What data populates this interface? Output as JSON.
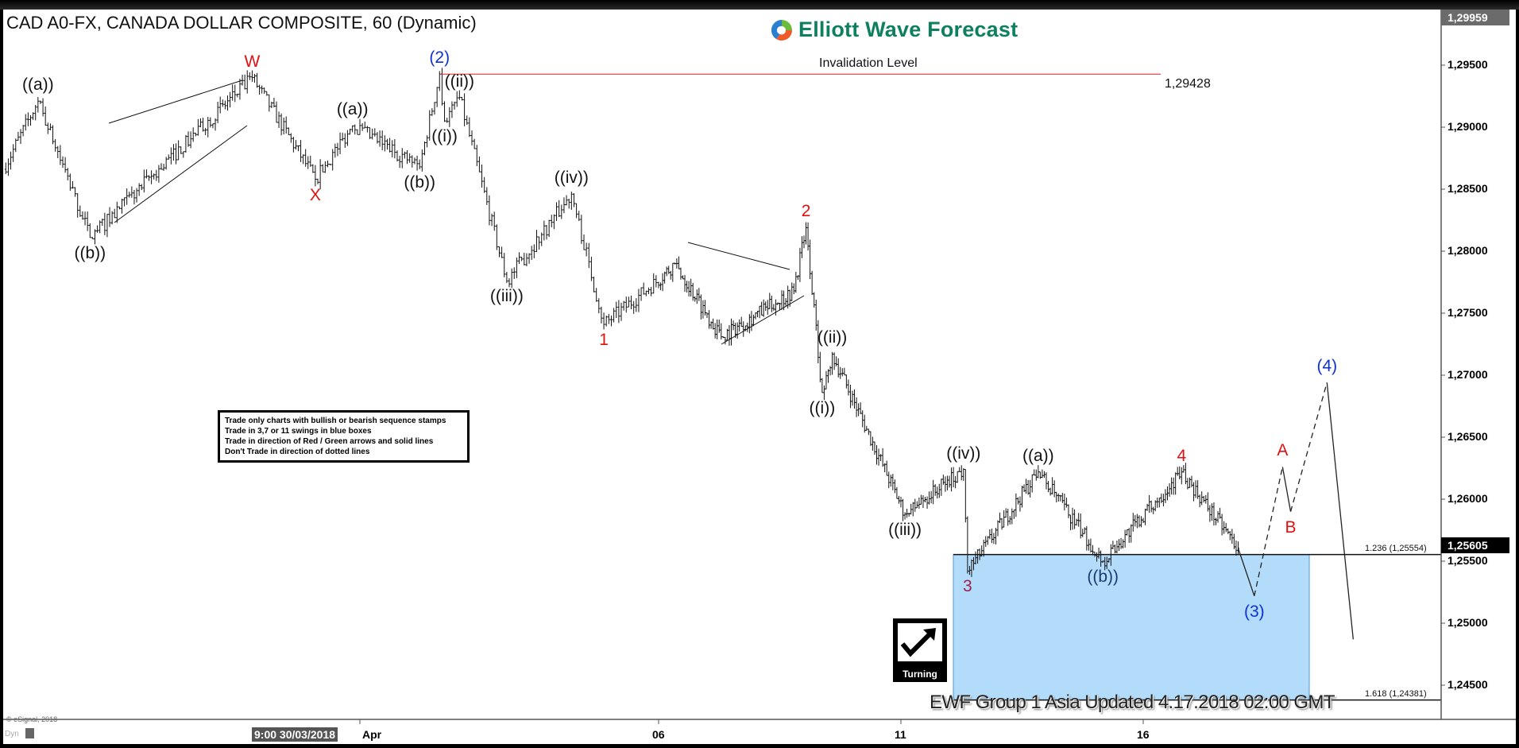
{
  "header": {
    "title": "CAD A0-FX, CANADA DOLLAR COMPOSITE, 60 (Dynamic)",
    "logo_text": "Elliott Wave Forecast"
  },
  "rules_box": [
    "Trade only charts with bullish or bearish sequence stamps",
    "Trade in 3,7 or 11 swings in blue boxes",
    "Trade in direction of Red / Green arrows and solid lines",
    "Don't Trade in direction of dotted lines"
  ],
  "turning_label": "Turning",
  "footer_text": "EWF Group 1 Asia Updated 4.17.2018 02:00 GMT",
  "copyright": "© eSignal, 2018",
  "dyn_label": "Dyn",
  "chart_data": {
    "type": "ohlc",
    "interval": "60 min",
    "ylim": [
      1.2425,
      1.2998
    ],
    "y_ticks": [
      "1,29500",
      "1,29000",
      "1,28500",
      "1,28000",
      "1,27500",
      "1,27000",
      "1,26500",
      "1,26000",
      "1,25500",
      "1,25000",
      "1,24500"
    ],
    "y_tick_values": [
      1.295,
      1.29,
      1.285,
      1.28,
      1.275,
      1.27,
      1.265,
      1.26,
      1.255,
      1.25,
      1.245
    ],
    "x_ticks": [
      {
        "date": "2018-04-01",
        "label": "Apr"
      },
      {
        "date": "2018-04-06",
        "label": "06"
      },
      {
        "date": "2018-04-11",
        "label": "11"
      },
      {
        "date": "2018-04-16",
        "label": "16"
      }
    ],
    "cursor_time_label": "9:00 30/03/2018",
    "top_price_label": "1,29959",
    "top_price": 1.29959,
    "last_price_label": "1,25605",
    "last_price": 1.25605,
    "invalidation": {
      "label": "Invalidation Level",
      "value": 1.29428,
      "value_label": "1,29428",
      "color": "#e02020"
    },
    "fib_levels": [
      {
        "label": "1.236 (1,25554)",
        "value": 1.25554
      },
      {
        "label": "1.618 (1,24381)",
        "value": 1.24381
      }
    ],
    "target_box": {
      "from": 1.25554,
      "to": 1.24381,
      "color": "#b3dcfb"
    },
    "price_path": [
      {
        "t": "2018-03-26T00:00",
        "p": 1.2866
      },
      {
        "t": "2018-03-26T14:00",
        "p": 1.2921,
        "label": "((a))",
        "color": "#111111",
        "at": "high"
      },
      {
        "t": "2018-03-27T11:00",
        "p": 1.2811,
        "label": "((b))",
        "color": "#111111",
        "at": "low"
      },
      {
        "t": "2018-03-30T04:30",
        "p": 1.294,
        "label": "W",
        "color": "#e01010",
        "at": "high"
      },
      {
        "t": "2018-03-31T06:00",
        "p": 1.2858,
        "label": "X",
        "color": "#e01010",
        "at": "low"
      },
      {
        "t": "2018-03-31T21:00",
        "p": 1.2901,
        "label": "((a))",
        "color": "#111111",
        "at": "high"
      },
      {
        "t": "2018-04-02T00:00",
        "p": 1.2868,
        "label": "((b))",
        "color": "#111111",
        "at": "low"
      },
      {
        "t": "2018-04-02T08:00",
        "p": 1.29428,
        "label": "(2)",
        "color": "#1030d0",
        "at": "high"
      },
      {
        "t": "2018-04-02T10:00",
        "p": 1.2905,
        "label": "((i))",
        "color": "#111111",
        "at": "low"
      },
      {
        "t": "2018-04-02T16:00",
        "p": 1.2924,
        "label": "((ii))",
        "color": "#111111",
        "at": "high"
      },
      {
        "t": "2018-04-03T11:00",
        "p": 1.2776,
        "label": "((iii))",
        "color": "#111111",
        "at": "low"
      },
      {
        "t": "2018-04-04T13:00",
        "p": 1.2846,
        "label": "((iv))",
        "color": "#111111",
        "at": "high"
      },
      {
        "t": "2018-04-05T02:00",
        "p": 1.2741,
        "label": "1",
        "color": "#e01010",
        "at": "low"
      },
      {
        "t": "2018-04-06T08:00",
        "p": 1.279
      },
      {
        "t": "2018-04-07T07:00",
        "p": 1.2731
      },
      {
        "t": "2018-04-08T19:00",
        "p": 1.2768
      },
      {
        "t": "2018-04-09T01:00",
        "p": 1.2819,
        "label": "2",
        "color": "#e01010",
        "at": "high"
      },
      {
        "t": "2018-04-09T09:00",
        "p": 1.2686,
        "label": "((i))",
        "color": "#111111",
        "at": "low"
      },
      {
        "t": "2018-04-09T14:00",
        "p": 1.2717,
        "label": "((ii))",
        "color": "#111111",
        "at": "high"
      },
      {
        "t": "2018-04-11T02:00",
        "p": 1.2588,
        "label": "((iii))",
        "color": "#111111",
        "at": "low"
      },
      {
        "t": "2018-04-12T07:00",
        "p": 1.2624,
        "label": "((iv))",
        "color": "#111111",
        "at": "high"
      },
      {
        "t": "2018-04-12T09:00",
        "p": 1.2542,
        "label": "3",
        "color": "#a0204a",
        "at": "low"
      },
      {
        "t": "2018-04-13T20:00",
        "p": 1.2622,
        "label": "((a))",
        "color": "#111111",
        "at": "high"
      },
      {
        "t": "2018-04-15T04:00",
        "p": 1.255,
        "label": "((b))",
        "color": "#1a3a70",
        "at": "low"
      },
      {
        "t": "2018-04-16T19:00",
        "p": 1.2622,
        "label": "4",
        "color": "#e01010",
        "at": "high"
      },
      {
        "t": "2018-04-17T23:00",
        "p": 1.25605
      }
    ],
    "projection": [
      {
        "t": "2018-04-17T23:00",
        "p": 1.25605
      },
      {
        "t": "2018-04-18T07:00",
        "p": 1.2522,
        "label": "(3)",
        "color": "#1030d0",
        "at": "low",
        "line": "solid"
      },
      {
        "t": "2018-04-18T21:00",
        "p": 1.2626,
        "label": "A",
        "color": "#e01010",
        "at": "high",
        "line": "dashed"
      },
      {
        "t": "2018-04-19T01:00",
        "p": 1.259,
        "label": "B",
        "color": "#e01010",
        "at": "low",
        "line": "solid"
      },
      {
        "t": "2018-04-19T19:00",
        "p": 1.2694,
        "label": "(4)",
        "color": "#1030d0",
        "at": "high",
        "line": "dashed"
      },
      {
        "t": "2018-04-20T08:00",
        "p": 1.2487,
        "line": "solid"
      }
    ]
  }
}
